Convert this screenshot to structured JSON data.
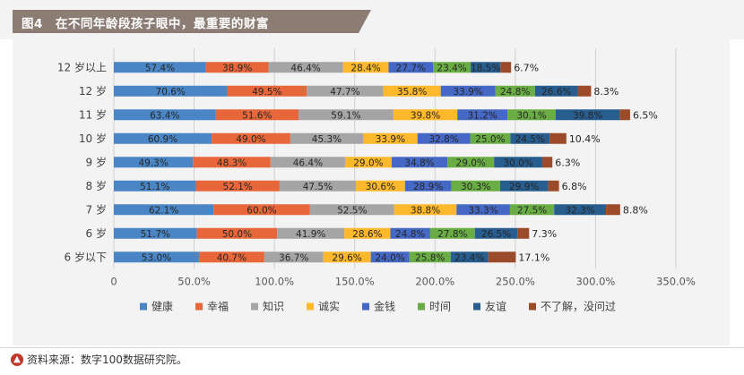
{
  "header": {
    "title": "图4　在不同年龄段孩子眼中，最重要的财富"
  },
  "footer": {
    "source": "资料来源：数字100数据研究院。",
    "icon": "arrow-up-circle-icon"
  },
  "chart_data": {
    "type": "stacked-bar-horizontal",
    "categories": [
      "12 岁以上",
      "12 岁",
      "11 岁",
      "10 岁",
      "9 岁",
      "8 岁",
      "7 岁",
      "6 岁",
      "6 岁以下"
    ],
    "x_ticks": [
      "0",
      "50.0%",
      "100.0%",
      "150.0%",
      "200.0%",
      "250.0%",
      "300.0%",
      "350.0%"
    ],
    "xlim": [
      0,
      350
    ],
    "grid": "vertical",
    "legend": "bottom",
    "series": [
      {
        "name": "健康",
        "color": "#4a86c5",
        "values": [
          57.4,
          70.6,
          63.4,
          60.9,
          49.3,
          51.1,
          62.1,
          51.7,
          53.0
        ]
      },
      {
        "name": "幸福",
        "color": "#e8673a",
        "values": [
          38.9,
          49.5,
          51.6,
          49.0,
          48.3,
          52.1,
          60.0,
          50.0,
          40.7
        ]
      },
      {
        "name": "知识",
        "color": "#a5a5a5",
        "values": [
          46.4,
          47.7,
          59.1,
          45.3,
          46.4,
          47.5,
          52.5,
          41.9,
          36.7
        ]
      },
      {
        "name": "诚实",
        "color": "#fdb82b",
        "values": [
          28.4,
          35.8,
          39.8,
          33.9,
          29.0,
          30.6,
          38.8,
          28.6,
          29.6
        ]
      },
      {
        "name": "金钱",
        "color": "#4668c5",
        "values": [
          27.7,
          33.9,
          31.2,
          32.8,
          34.8,
          28.9,
          33.3,
          24.8,
          24.0
        ]
      },
      {
        "name": "时间",
        "color": "#6aad45",
        "values": [
          23.4,
          24.8,
          30.1,
          25.0,
          29.0,
          30.3,
          27.5,
          27.8,
          25.8
        ]
      },
      {
        "name": "友谊",
        "color": "#275d8f",
        "values": [
          18.5,
          26.6,
          39.8,
          24.5,
          30.0,
          29.9,
          32.3,
          26.5,
          23.4
        ]
      },
      {
        "name": "不了解，没问过",
        "color": "#9b4a2a",
        "values": [
          6.7,
          8.3,
          6.5,
          10.4,
          6.3,
          6.8,
          8.8,
          7.3,
          17.1
        ]
      }
    ]
  }
}
